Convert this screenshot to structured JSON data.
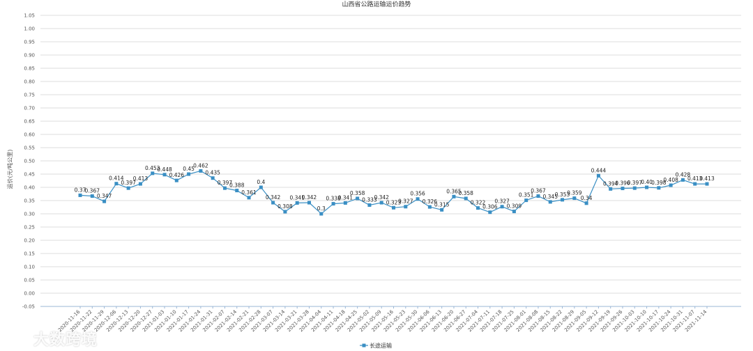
{
  "chart_data": {
    "type": "line",
    "title": "山西省公路运输运价趋势",
    "ylabel": "运价(元/吨公里)",
    "xlabel": "",
    "ylim": [
      -0.05,
      1.05
    ],
    "ytick_step": 0.05,
    "yticks": [
      "-0.05",
      "0.00",
      "0.05",
      "0.10",
      "0.15",
      "0.20",
      "0.25",
      "0.30",
      "0.35",
      "0.40",
      "0.45",
      "0.50",
      "0.55",
      "0.60",
      "0.65",
      "0.70",
      "0.75",
      "0.80",
      "0.85",
      "0.90",
      "0.95",
      "1.00",
      "1.05"
    ],
    "grid": true,
    "legend_position": "bottom-center",
    "categories": [
      "2020-11-16",
      "2020-11-22",
      "2020-11-29",
      "2020-12-06",
      "2020-12-13",
      "2020-12-20",
      "2020-12-27",
      "2021-01-03",
      "2021-01-10",
      "2021-01-17",
      "2021-01-24",
      "2021-01-31",
      "2021-02-07",
      "2021-02-14",
      "2021-02-21",
      "2021-02-28",
      "2021-03-07",
      "2021-03-14",
      "2021-03-21",
      "2021-03-28",
      "2021-04-04",
      "2021-04-11",
      "2021-04-18",
      "2021-04-25",
      "2021-05-02",
      "2021-05-09",
      "2021-05-16",
      "2021-05-23",
      "2021-05-30",
      "2021-06-06",
      "2021-06-13",
      "2021-06-20",
      "2021-06-27",
      "2021-07-04",
      "2021-07-11",
      "2021-07-18",
      "2021-07-25",
      "2021-08-01",
      "2021-08-08",
      "2021-08-15",
      "2021-08-22",
      "2021-08-29",
      "2021-09-05",
      "2021-09-12",
      "2021-09-19",
      "2021-09-26",
      "2021-10-03",
      "2021-10-10",
      "2021-10-17",
      "2021-10-24",
      "2021-10-31",
      "2021-11-07",
      "2021-11-14"
    ],
    "series": [
      {
        "name": "长途运输",
        "color": "#3a8fc4",
        "values": [
          0.37,
          0.367,
          0.347,
          0.414,
          0.397,
          0.413,
          0.453,
          0.448,
          0.426,
          0.45,
          0.462,
          0.435,
          0.397,
          0.388,
          0.361,
          0.4,
          0.342,
          0.308,
          0.341,
          0.342,
          0.3,
          0.338,
          0.341,
          0.358,
          0.333,
          0.342,
          0.323,
          0.327,
          0.356,
          0.326,
          0.315,
          0.365,
          0.358,
          0.322,
          0.306,
          0.327,
          0.309,
          0.351,
          0.367,
          0.345,
          0.353,
          0.359,
          0.34,
          0.444,
          0.394,
          0.396,
          0.397,
          0.4,
          0.398,
          0.408,
          0.428,
          0.413,
          0.413
        ],
        "labels": [
          "0.37",
          "0.367",
          "0.347",
          "0.414",
          "0.397",
          "0.413",
          "0.453",
          "0.448",
          "0.426",
          "0.45",
          "0.462",
          "0.435",
          "0.397",
          "0.388",
          "0.361",
          "0.4",
          "0.342",
          "0.308",
          "0.341",
          "0.342",
          "0.3",
          "0.338",
          "0.341",
          "0.358",
          "0.333",
          "0.342",
          "0.323",
          "0.327",
          "0.356",
          "0.326",
          "0.315",
          "0.365",
          "0.358",
          "0.322",
          "0.306",
          "0.327",
          "0.309",
          "0.351",
          "0.367",
          "0.345",
          "0.353",
          "0.359",
          "0.34",
          "0.444",
          "0.394",
          "0.396",
          "0.397",
          "0.40",
          "0.398",
          "0.408",
          "0.428",
          "0.413",
          "0.413"
        ]
      }
    ]
  },
  "watermark": {
    "text": "大数跨境"
  }
}
